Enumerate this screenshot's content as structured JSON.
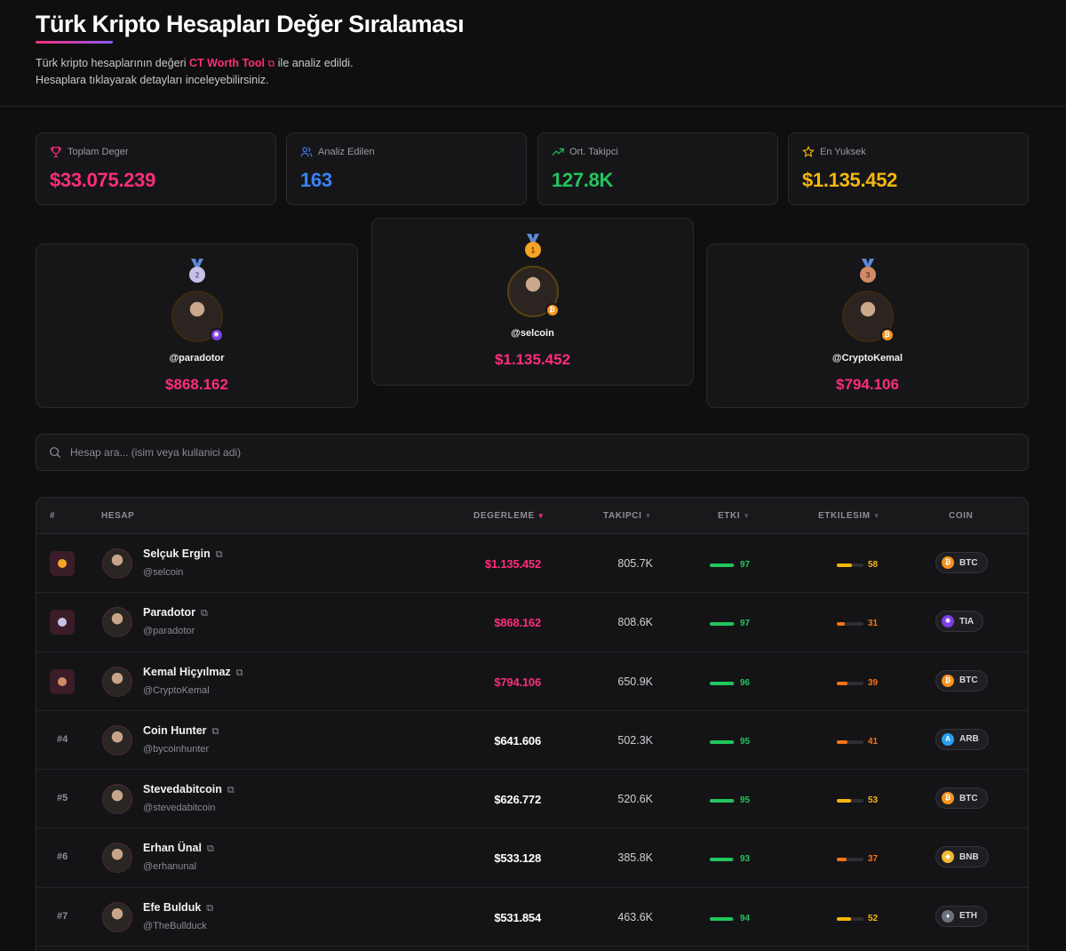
{
  "header": {
    "title": "Türk Kripto Hesapları Değer Sıralaması",
    "subtitle_prefix": "Türk kripto hesaplarının değeri",
    "subtitle_link": "CT Worth Tool",
    "subtitle_suffix": "ile analiz edildi.",
    "subtitle_line2": "Hesaplara tıklayarak detayları inceleyebilirsiniz."
  },
  "stats": [
    {
      "label": "Toplam Deger",
      "value": "$33.075.239",
      "color": "#ff2d7a",
      "icon": "trophy-icon"
    },
    {
      "label": "Analiz Edilen",
      "value": "163",
      "color": "#3b82f6",
      "icon": "users-icon"
    },
    {
      "label": "Ort. Takipci",
      "value": "127.8K",
      "color": "#22c55e",
      "icon": "trending-up-icon"
    },
    {
      "label": "En Yuksek",
      "value": "$1.135.452",
      "color": "#f5b70b",
      "icon": "star-icon"
    }
  ],
  "podium": {
    "first": {
      "rank": "1",
      "handle": "@selcoin",
      "value": "$1.135.452",
      "coin": "BTC"
    },
    "second": {
      "rank": "2",
      "handle": "@paradotor",
      "value": "$868.162",
      "coin": "TIA"
    },
    "third": {
      "rank": "3",
      "handle": "@CryptoKemal",
      "value": "$794.106",
      "coin": "BTC"
    }
  },
  "search": {
    "placeholder": "Hesap ara... (isim veya kullanici adi)"
  },
  "table": {
    "headers": {
      "rank": "#",
      "account": "HESAP",
      "value": "DEGERLEME",
      "followers": "TAKIPCI",
      "impact": "ETKI",
      "engagement": "ETKILESIM",
      "coin": "COIN"
    },
    "rows": [
      {
        "rank": "1",
        "medal": true,
        "name": "Selçuk Ergin",
        "handle": "@selcoin",
        "value": "$1.135.452",
        "value_color": "#ff2d7a",
        "followers": "805.7K",
        "impact": 97,
        "engagement": 58,
        "coin": "BTC"
      },
      {
        "rank": "2",
        "medal": true,
        "name": "Paradotor",
        "handle": "@paradotor",
        "value": "$868.162",
        "value_color": "#ff2d7a",
        "followers": "808.6K",
        "impact": 97,
        "engagement": 31,
        "coin": "TIA"
      },
      {
        "rank": "3",
        "medal": true,
        "name": "Kemal Hiçyılmaz",
        "handle": "@CryptoKemal",
        "value": "$794.106",
        "value_color": "#ff2d7a",
        "followers": "650.9K",
        "impact": 96,
        "engagement": 39,
        "coin": "BTC"
      },
      {
        "rank": "#4",
        "medal": false,
        "name": "Coin Hunter",
        "handle": "@bycoinhunter",
        "value": "$641.606",
        "value_color": "#ffffff",
        "followers": "502.3K",
        "impact": 95,
        "engagement": 41,
        "coin": "ARB"
      },
      {
        "rank": "#5",
        "medal": false,
        "name": "Stevedabitcoin",
        "handle": "@stevedabitcoin",
        "value": "$626.772",
        "value_color": "#ffffff",
        "followers": "520.6K",
        "impact": 95,
        "engagement": 53,
        "coin": "BTC"
      },
      {
        "rank": "#6",
        "medal": false,
        "name": "Erhan Ünal",
        "handle": "@erhanunal",
        "value": "$533.128",
        "value_color": "#ffffff",
        "followers": "385.8K",
        "impact": 93,
        "engagement": 37,
        "coin": "BNB"
      },
      {
        "rank": "#7",
        "medal": false,
        "name": "Efe Bulduk",
        "handle": "@TheBullduck",
        "value": "$531.854",
        "value_color": "#ffffff",
        "followers": "463.6K",
        "impact": 94,
        "engagement": 52,
        "coin": "ETH"
      }
    ]
  },
  "colors": {
    "accent": "#ff2d7a",
    "impact": "#22c55e",
    "engagement_high": "#f5b70b",
    "engagement_low": "#f97316",
    "BTC": "#f7931a",
    "TIA": "#7b3fe4",
    "ARB": "#28a0f0",
    "BNB": "#f3ba2f",
    "ETH": "#6b7280"
  }
}
